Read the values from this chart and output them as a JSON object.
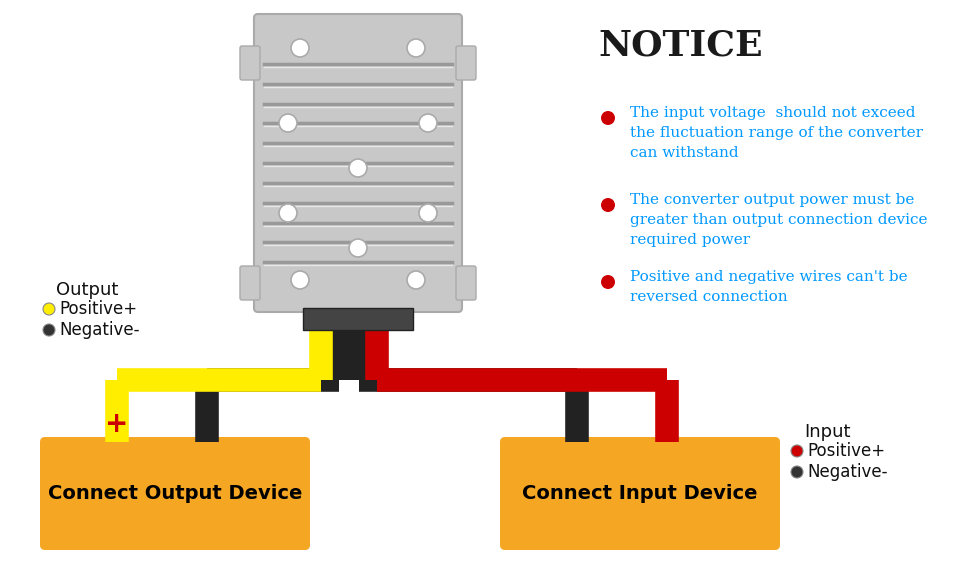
{
  "bg_color": "#ffffff",
  "notice_title": "NOTICE",
  "notice_color": "#1a1a1a",
  "bullet_color": "#cc0000",
  "notice_text_color": "#0099ff",
  "notice_items": [
    "The input voltage  should not exceed\nthe fluctuation range of the converter\ncan withstand",
    "The converter output power must be\ngreater than output connection device\nrequired power",
    "Positive and negative wires can't be\nreversed connection"
  ],
  "output_label": "Output",
  "output_pos_label": "Positive+",
  "output_neg_label": "Negative-",
  "output_pos_color": "#ffee00",
  "output_neg_color": "#333333",
  "input_label": "Input",
  "input_pos_label": "Positive+",
  "input_neg_label": "Negative-",
  "input_pos_color": "#cc0000",
  "input_neg_color": "#333333",
  "box_color": "#f5a623",
  "box_text_color": "#000000",
  "output_device_label": "Connect Output Device",
  "input_device_label": "Connect Input Device",
  "wire_yellow": "#ffee00",
  "wire_black": "#222222",
  "wire_red": "#cc0000",
  "plus_color": "#cc0000",
  "minus_color": "#222222",
  "heatsink_color": "#c8c8c8",
  "heatsink_dark": "#999999",
  "heatsink_light": "#e8e8e8"
}
